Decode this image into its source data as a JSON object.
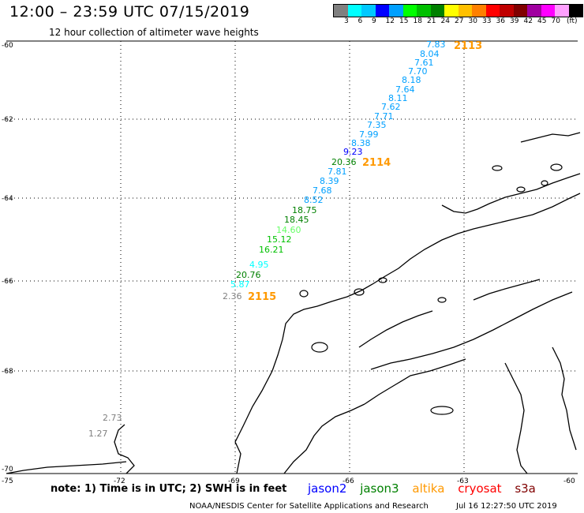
{
  "title": "12:00 – 23:59 UTC 07/15/2019",
  "subtitle": "12 hour collection of altimeter wave heights",
  "colorbar": {
    "colors": [
      "#808080",
      "#00ffff",
      "#00c8ff",
      "#0000ff",
      "#00a0ff",
      "#00ff00",
      "#00c000",
      "#008000",
      "#ffff00",
      "#ffc000",
      "#ff8000",
      "#ff0000",
      "#c00000",
      "#800000",
      "#a000a0",
      "#ff00ff",
      "#ffa0ff",
      "#000000"
    ],
    "labels": [
      "3",
      "6",
      "9",
      "12",
      "15",
      "18",
      "21",
      "24",
      "27",
      "30",
      "33",
      "36",
      "39",
      "42",
      "45",
      "70"
    ],
    "units": "(ft)"
  },
  "axes": {
    "lat_labels": [
      "-60",
      "-62",
      "-64",
      "-66",
      "-68",
      "-70"
    ],
    "lon_labels": [
      "-75",
      "-72",
      "-69",
      "-66",
      "-63",
      "-60"
    ]
  },
  "passes": [
    "2113",
    "2114",
    "2115"
  ],
  "wave_heights": [
    {
      "value": "7.83",
      "color": "#00a0ff"
    },
    {
      "value": "8.04",
      "color": "#00a0ff"
    },
    {
      "value": "7.61",
      "color": "#00a0ff"
    },
    {
      "value": "7.70",
      "color": "#00a0ff"
    },
    {
      "value": "8.18",
      "color": "#00a0ff"
    },
    {
      "value": "7.64",
      "color": "#00a0ff"
    },
    {
      "value": "8.11",
      "color": "#00a0ff"
    },
    {
      "value": "7.62",
      "color": "#00a0ff"
    },
    {
      "value": "7.71",
      "color": "#00a0ff"
    },
    {
      "value": "7.35",
      "color": "#00a0ff"
    },
    {
      "value": "7.99",
      "color": "#00a0ff"
    },
    {
      "value": "8.38",
      "color": "#00a0ff"
    },
    {
      "value": "9.23",
      "color": "#0000ff"
    },
    {
      "value": "20.36",
      "color": "#008000"
    },
    {
      "value": "7.81",
      "color": "#00a0ff"
    },
    {
      "value": "8.39",
      "color": "#00a0ff"
    },
    {
      "value": "7.68",
      "color": "#00a0ff"
    },
    {
      "value": "8.52",
      "color": "#00a0ff"
    },
    {
      "value": "18.75",
      "color": "#008000"
    },
    {
      "value": "18.45",
      "color": "#008000"
    },
    {
      "value": "14.60",
      "color": "#66ff66"
    },
    {
      "value": "15.12",
      "color": "#00c000"
    },
    {
      "value": "16.21",
      "color": "#00c000"
    },
    {
      "value": "4.95",
      "color": "#00ffff"
    },
    {
      "value": "20.76",
      "color": "#008000"
    },
    {
      "value": "5.87",
      "color": "#00ffff"
    },
    {
      "value": "2.36",
      "color": "#808080"
    },
    {
      "value": "2.73",
      "color": "#808080"
    },
    {
      "value": "1.27",
      "color": "#808080"
    }
  ],
  "note": "note:  1) Time is in UTC;  2) SWH is in feet",
  "satellites": [
    {
      "name": "jason2",
      "color": "#0000ff"
    },
    {
      "name": "jason3",
      "color": "#008000"
    },
    {
      "name": "altika",
      "color": "#ff9900"
    },
    {
      "name": "cryosat",
      "color": "#ff0000"
    },
    {
      "name": "s3a",
      "color": "#800000"
    }
  ],
  "credit": "NOAA/NESDIS Center for Satellite Applications and Research",
  "timestamp": "Jul 16 12:27:50 UTC 2019"
}
